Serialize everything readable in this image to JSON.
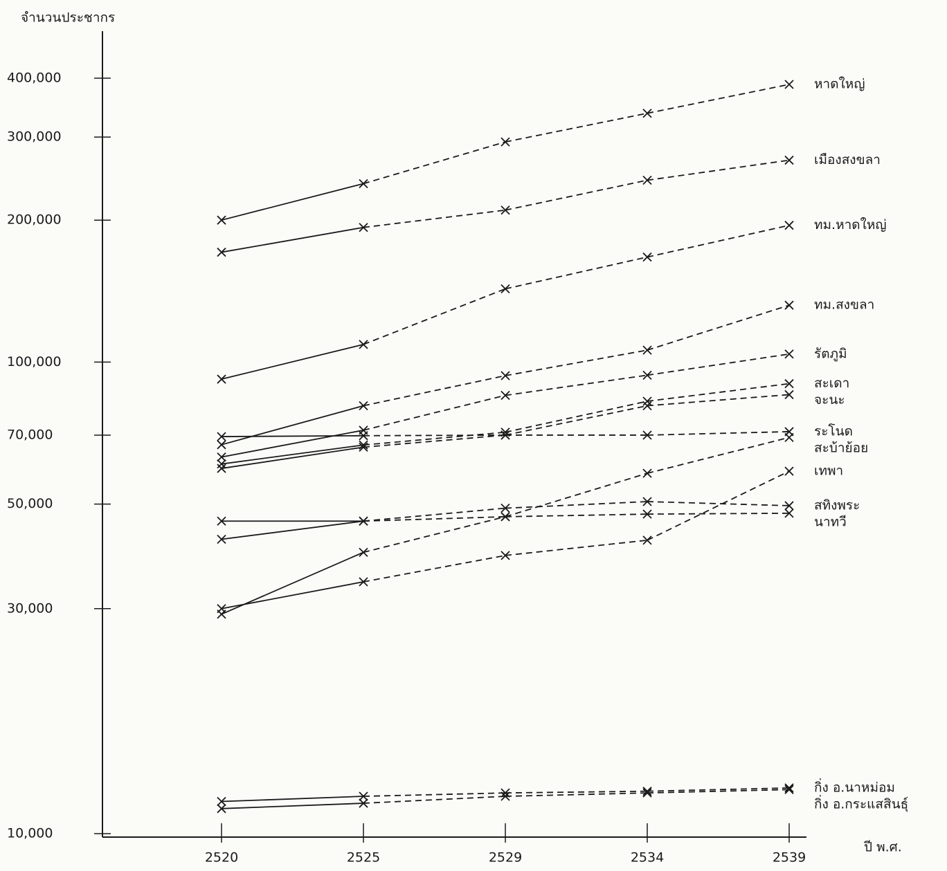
{
  "chart_data": {
    "type": "line",
    "y_label": "จำนวนประชากร",
    "x_label": "ปี พ.ศ.",
    "categories": [
      "2520",
      "2525",
      "2529",
      "2534",
      "2539"
    ],
    "log_scale": true,
    "color": "#1a1a1a",
    "ylim": [
      10000,
      400000
    ],
    "yticks": [
      {
        "value": 10000,
        "label": "10,000"
      },
      {
        "value": 30000,
        "label": "30,000"
      },
      {
        "value": 50000,
        "label": "50,000"
      },
      {
        "value": 70000,
        "label": "70,000"
      },
      {
        "value": 100000,
        "label": "100,000"
      },
      {
        "value": 200000,
        "label": "200,000"
      },
      {
        "value": 300000,
        "label": "300,000"
      },
      {
        "value": 400000,
        "label": "400,000"
      }
    ],
    "series": [
      {
        "name": "หาดใหญ่",
        "values": [
          200000,
          239000,
          293000,
          337000,
          388000
        ]
      },
      {
        "name": "เมืองสงขลา",
        "values": [
          171000,
          193000,
          210000,
          243000,
          268000
        ]
      },
      {
        "name": "ทม.หาดใหญ่",
        "values": [
          92000,
          109000,
          143000,
          167000,
          195000
        ]
      },
      {
        "name": "ทม.สงขลา",
        "values": [
          66800,
          80800,
          93600,
          106000,
          132000
        ]
      },
      {
        "name": "รัตภูมิ",
        "values": [
          62900,
          71700,
          85000,
          93800,
          104000
        ]
      },
      {
        "name": "สะเดา",
        "values": [
          60800,
          66700,
          71000,
          82600,
          90000
        ]
      },
      {
        "name": "จะนะ",
        "values": [
          59500,
          66000,
          70000,
          80800,
          85300
        ]
      },
      {
        "name": "ระโนด",
        "values": [
          69500,
          69800,
          70000,
          70000,
          71200
        ]
      },
      {
        "name": "สะบ้าย้อย",
        "values": [
          29200,
          39500,
          47000,
          58100,
          69200
        ]
      },
      {
        "name": "เทพา",
        "values": [
          30000,
          34200,
          38900,
          41900,
          58700
        ]
      },
      {
        "name": "สทิงพระ",
        "values": [
          46000,
          46000,
          49000,
          50600,
          49600
        ]
      },
      {
        "name": "นาทวี",
        "values": [
          42100,
          46000,
          47000,
          47600,
          47800
        ]
      },
      {
        "name": "กิ่ง อ.นาหม่อม",
        "values": [
          11700,
          12000,
          12200,
          12300,
          12500
        ]
      },
      {
        "name": "กิ่ง อ.กระแสสินธุ์",
        "values": [
          11300,
          11600,
          12000,
          12200,
          12400
        ]
      }
    ]
  }
}
